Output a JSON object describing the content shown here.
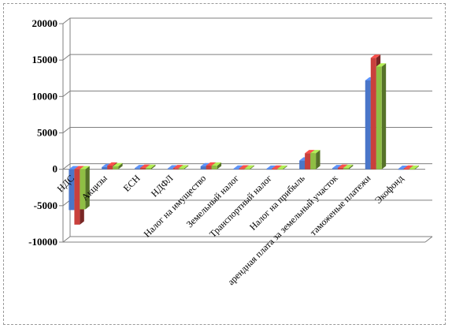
{
  "chart_data": {
    "type": "bar",
    "title": "",
    "xlabel": "",
    "ylabel": "",
    "ylim": [
      -10000,
      20000
    ],
    "yticks": [
      -10000,
      -5000,
      0,
      5000,
      10000,
      15000,
      20000
    ],
    "ytick_labels": [
      "-10000",
      "-5000",
      "0",
      "5000",
      "10000",
      "15000",
      "20000"
    ],
    "grid": true,
    "legend": "none",
    "style": "3d clustered columns",
    "categories": [
      "НДС",
      "Акцизы",
      "ЕСН",
      "НДФЛ",
      "Налог на имущество",
      "Земельный налог",
      "Транспортный налог",
      "Налог на прибыль",
      "арендная плата за земельный участок",
      "таможеные платежи",
      "Экофонд"
    ],
    "series": [
      {
        "color": "#4a76c9",
        "values": [
          -5600,
          300,
          150,
          100,
          400,
          80,
          60,
          1200,
          150,
          12200,
          50
        ]
      },
      {
        "color": "#c9403c",
        "values": [
          -7600,
          500,
          200,
          150,
          500,
          100,
          80,
          2200,
          200,
          15300,
          80
        ]
      },
      {
        "color": "#8fbe44",
        "values": [
          -5500,
          400,
          180,
          120,
          480,
          90,
          70,
          2200,
          180,
          14100,
          60
        ]
      }
    ]
  }
}
